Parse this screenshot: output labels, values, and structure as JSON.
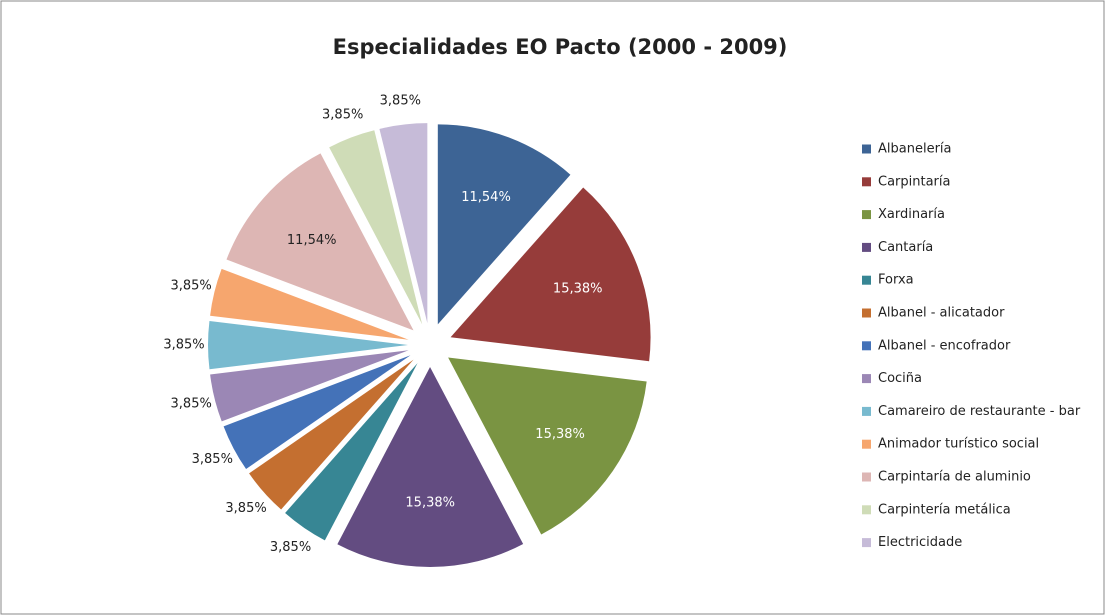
{
  "chart_data": {
    "type": "pie",
    "title": "Especialidades  EO Pacto (2000 - 2009)",
    "categories": [
      "Albanelería",
      "Carpintaría",
      "Xardinaría",
      "Cantaría",
      "Forxa",
      "Albanel - alicatador",
      "Albanel - encofrador",
      "Cociña",
      "Camareiro de restaurante  - bar",
      "Animador turístico social",
      "Carpintaría de aluminio",
      "Carpintería metálica",
      "Electricidade"
    ],
    "values": [
      11.54,
      15.38,
      15.38,
      15.38,
      3.85,
      3.85,
      3.85,
      3.85,
      3.85,
      3.85,
      11.54,
      3.85,
      3.85
    ],
    "value_labels": [
      "11,54%",
      "15,38%",
      "15,38%",
      "15,38%",
      "3,85%",
      "3,85%",
      "3,85%",
      "3,85%",
      "3,85%",
      "3,85%",
      "11,54%",
      "3,85%",
      "3,85%"
    ],
    "colors": [
      "#3d6495",
      "#963c3a",
      "#7a9442",
      "#634c81",
      "#378694",
      "#c46f30",
      "#4472b8",
      "#9b87b5",
      "#78bacf",
      "#f6a66e",
      "#ddb6b4",
      "#cfdcb7",
      "#c6bbd8"
    ],
    "legend": "right"
  }
}
